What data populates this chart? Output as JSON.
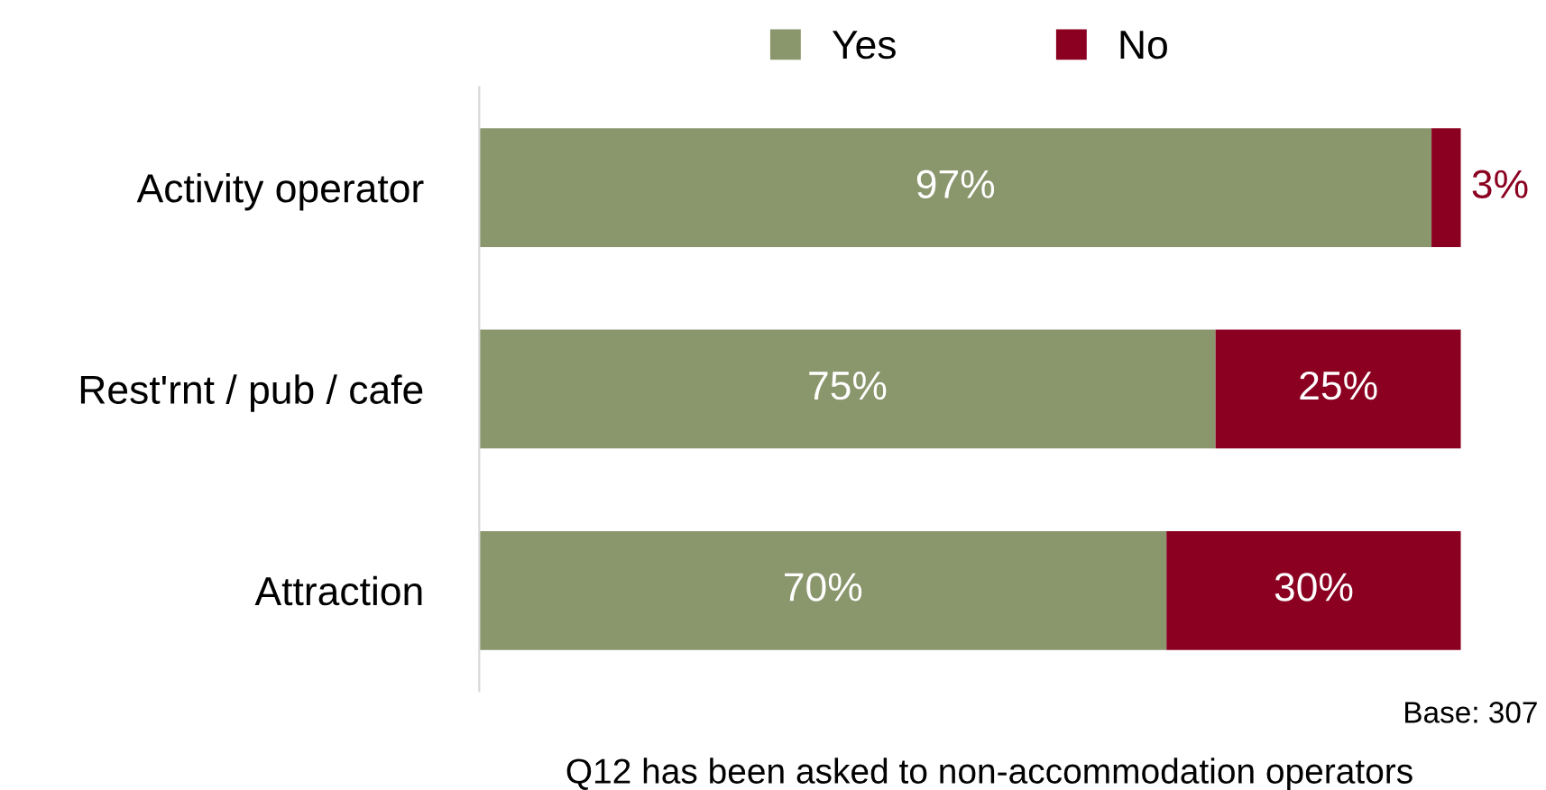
{
  "chart_data": {
    "type": "bar",
    "orientation": "horizontal",
    "stacked": true,
    "legend": "top",
    "grid": false,
    "categories": [
      "Activity operator",
      "Rest'rnt / pub / cafe",
      "Attraction"
    ],
    "series": [
      {
        "name": "Yes",
        "color": "#8a966c",
        "values": [
          97,
          75,
          70
        ],
        "value_labels": [
          "97%",
          "75%",
          "70%"
        ]
      },
      {
        "name": "No",
        "color": "#8b0021",
        "values": [
          3,
          25,
          30
        ],
        "value_labels": [
          "3%",
          "25%",
          "30%"
        ]
      }
    ],
    "annotations": [
      "Base: 307",
      "Q12 has been asked to non-accommodation operators"
    ]
  }
}
